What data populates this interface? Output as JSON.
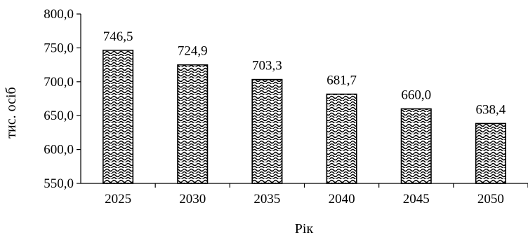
{
  "chart_data": {
    "type": "bar",
    "title": "",
    "xlabel": "Рік",
    "ylabel": "тис. осіб",
    "categories": [
      "2025",
      "2030",
      "2035",
      "2040",
      "2045",
      "2050"
    ],
    "values": [
      746.5,
      724.9,
      703.3,
      681.7,
      660.0,
      638.4
    ],
    "value_labels": [
      "746,5",
      "724,9",
      "703,3",
      "681,7",
      "660,0",
      "638,4"
    ],
    "ylim": [
      550,
      800
    ],
    "yticks": [
      550,
      600,
      650,
      700,
      750,
      800
    ],
    "ytick_labels": [
      "550,0",
      "600,0",
      "650,0",
      "700,0",
      "750,0",
      "800,0"
    ],
    "grid": false,
    "legend": "none",
    "bar_fill": "zigzag-hatch",
    "colors": {
      "bar_stroke": "#000000",
      "bar_pattern": "#000000",
      "background": "#ffffff"
    }
  }
}
